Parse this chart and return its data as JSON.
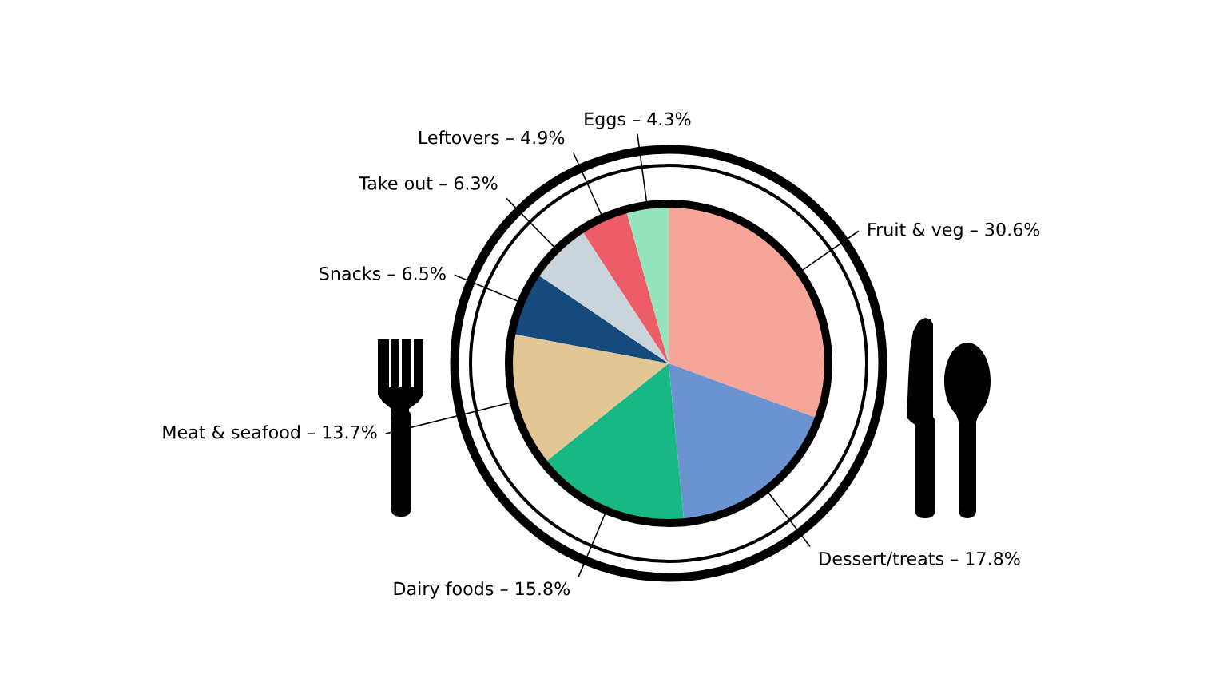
{
  "chart_data": {
    "type": "pie",
    "categories": [
      "Fruit & veg – 30.6%",
      "Dessert/treats – 17.8%",
      "Dairy foods – 15.8%",
      "Meat & seafood – 13.7%",
      "Snacks – 6.5%",
      "Take out – 6.3%",
      "Leftovers – 4.9%",
      "Eggs – 4.3%"
    ],
    "values": [
      30.6,
      17.8,
      15.8,
      13.7,
      6.5,
      6.3,
      4.9,
      4.3
    ],
    "colors": [
      "#f6a698",
      "#6b93d0",
      "#17b884",
      "#e2c795",
      "#164a7c",
      "#c9d4db",
      "#ec5d68",
      "#95e4bd"
    ]
  }
}
